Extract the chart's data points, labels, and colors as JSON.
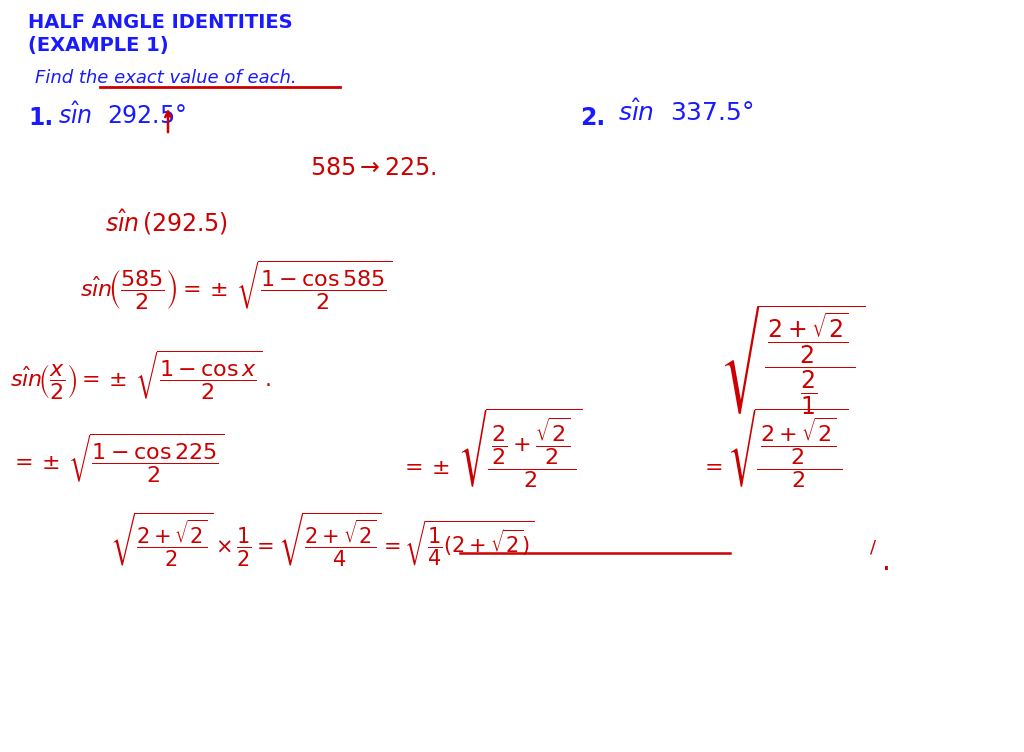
{
  "bg_color": "#ffffff",
  "blue": "#1a1aff",
  "red": "#cc0000",
  "figsize": [
    10.24,
    7.52
  ],
  "dpi": 100,
  "title_line1": "HALF ANGLE IDENTITIES",
  "title_line2": "(EXAMPLE 1)",
  "subtitle": "Find the exact value of each."
}
